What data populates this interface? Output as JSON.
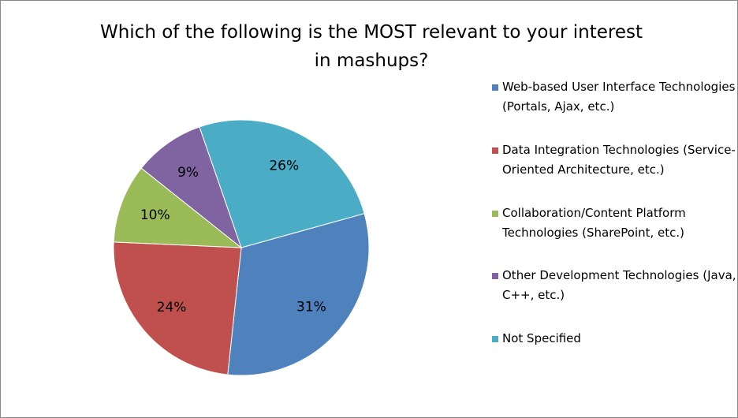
{
  "chart_data": {
    "type": "pie",
    "title": "Which of the following is the MOST relevant to your interest in mashups?",
    "categories": [
      "Web-based User Interface Technologies (Portals, Ajax, etc.)",
      "Data Integration Technologies (Service-Oriented Architecture, etc.)",
      "Collaboration/Content Platform Technologies (SharePoint, etc.)",
      "Other Development Technologies (Java, C++, etc.)",
      "Not Specified"
    ],
    "values": [
      31,
      24,
      10,
      9,
      26
    ],
    "value_labels": [
      "31%",
      "24%",
      "10%",
      "9%",
      "26%"
    ],
    "colors": [
      "#4f81bd",
      "#c0504d",
      "#9bbb59",
      "#8064a2",
      "#4bacc6"
    ],
    "legend": "right"
  }
}
